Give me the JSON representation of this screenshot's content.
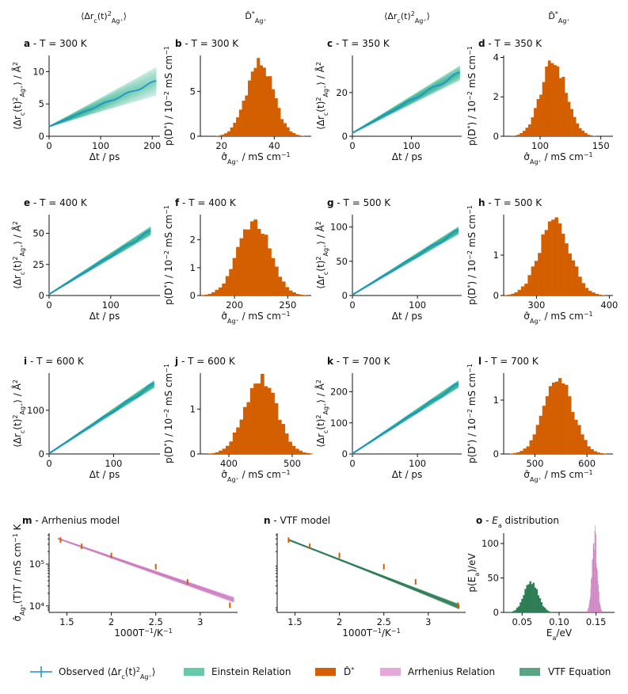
{
  "colors": {
    "observed": "#1f8fd0",
    "einstein": "#27b08a",
    "einstein_legend": "#66c9a9",
    "hist": "#d35f00",
    "arrhenius": "#cf7ac2",
    "arrhenius_legend": "#e6a8db",
    "vtf": "#2e7d57",
    "vtf_legend": "#5aa383"
  },
  "chart_data": {
    "column_headers": [
      "⟨Δr_c(t)²_Ag⁺⟩",
      "D̂*_Ag⁺",
      "⟨Δr_c(t)²_Ag⁺⟩",
      "D̂*_Ag⁺"
    ],
    "msd_panels": [
      {
        "id": "msd-a",
        "letter": "a",
        "title": " - T = 300 K",
        "type": "line",
        "xlabel": "Δt / ps",
        "ylabel": "⟨Δr_c(t)²_Ag⁺⟩ / Å²",
        "xlim": [
          0,
          215
        ],
        "ylim": [
          0,
          12.5
        ],
        "xticks": [
          0,
          100,
          200
        ],
        "yticks": [
          0,
          5,
          10
        ],
        "x_end": 208,
        "y_start": 1.5,
        "y_end": 8.5,
        "spread": 0.45
      },
      {
        "id": "msd-c",
        "letter": "c",
        "title": " - T = 350 K",
        "type": "line",
        "xlabel": "Δt / ps",
        "ylabel": "⟨Δr_c(t)²_Ag⁺⟩ / Å²",
        "xlim": [
          0,
          185
        ],
        "ylim": [
          0,
          37
        ],
        "xticks": [
          0,
          100
        ],
        "yticks": [
          0,
          20
        ],
        "x_end": 182,
        "y_start": 1.5,
        "y_end": 29,
        "spread": 0.2
      },
      {
        "id": "msd-e",
        "letter": "e",
        "title": " - T = 400 K",
        "type": "line",
        "xlabel": "Δt / ps",
        "ylabel": "⟨Δr_c(t)²_Ag⁺⟩ / Å²",
        "xlim": [
          0,
          180
        ],
        "ylim": [
          0,
          65
        ],
        "xticks": [
          0,
          100
        ],
        "yticks": [
          0,
          25,
          50
        ],
        "x_end": 165,
        "y_start": 1,
        "y_end": 52,
        "spread": 0.12
      },
      {
        "id": "msd-g",
        "letter": "g",
        "title": " - T = 500 K",
        "type": "line",
        "xlabel": "Δt / ps",
        "ylabel": "⟨Δr_c(t)²_Ag⁺⟩ / Å²",
        "xlim": [
          0,
          168
        ],
        "ylim": [
          0,
          118
        ],
        "xticks": [
          0,
          100
        ],
        "yticks": [
          0,
          50,
          100
        ],
        "x_end": 163,
        "y_start": 1,
        "y_end": 95,
        "spread": 0.1
      },
      {
        "id": "msd-i",
        "letter": "i",
        "title": " - T = 600 K",
        "type": "line",
        "xlabel": "Δt / ps",
        "ylabel": "⟨Δr_c(t)²_Ag⁺⟩ / Å²",
        "xlim": [
          0,
          172
        ],
        "ylim": [
          0,
          185
        ],
        "xticks": [
          0,
          100
        ],
        "yticks": [
          0,
          100
        ],
        "x_end": 163,
        "y_start": 1,
        "y_end": 160,
        "spread": 0.09
      },
      {
        "id": "msd-k",
        "letter": "k",
        "title": " - T = 700 K",
        "type": "line",
        "xlabel": "Δt / ps",
        "ylabel": "⟨Δr_c(t)²_Ag⁺⟩ / Å²",
        "xlim": [
          0,
          168
        ],
        "ylim": [
          0,
          260
        ],
        "xticks": [
          0,
          100
        ],
        "yticks": [
          0,
          100,
          200
        ],
        "x_end": 163,
        "y_start": 1,
        "y_end": 225,
        "spread": 0.09
      }
    ],
    "hist_panels": [
      {
        "id": "hist-b",
        "letter": "b",
        "title": " - T = 300 K",
        "type": "bar",
        "xlabel": "σ̂_Ag⁺ / mS cm⁻¹",
        "ylabel": "p(D*) / 10⁻² mS cm⁻¹",
        "xlim": [
          12,
          54
        ],
        "ylim": [
          0,
          9
        ],
        "xticks": [
          20,
          40
        ],
        "yticks": [
          0,
          5
        ],
        "mean": 34.5,
        "sd": 5.1,
        "peak": 8.2,
        "bins": 30
      },
      {
        "id": "hist-d",
        "letter": "d",
        "title": " - T = 350 K",
        "type": "bar",
        "xlabel": "σ̂_Ag⁺ / mS cm⁻¹",
        "ylabel": "p(D*) / 10⁻² mS cm⁻¹",
        "xlim": [
          70,
          160
        ],
        "ylim": [
          0,
          4.1
        ],
        "xticks": [
          100,
          150
        ],
        "yticks": [
          0,
          2,
          4
        ],
        "mean": 111,
        "sd": 10.5,
        "peak": 3.75,
        "bins": 30
      },
      {
        "id": "hist-f",
        "letter": "f",
        "title": " - T = 400 K",
        "type": "bar",
        "xlabel": "σ̂_Ag⁺ / mS cm⁻¹",
        "ylabel": "p(D*) / 10⁻² mS cm⁻¹",
        "xlim": [
          168,
          272
        ],
        "ylim": [
          0,
          2.9
        ],
        "xticks": [
          200,
          250
        ],
        "yticks": [
          0,
          1,
          2
        ],
        "mean": 218,
        "sd": 15,
        "peak": 2.7,
        "bins": 30
      },
      {
        "id": "hist-h",
        "letter": "h",
        "title": " - T = 500 K",
        "type": "bar",
        "xlabel": "σ̂_Ag⁺ / mS cm⁻¹",
        "ylabel": "p(D*) / 10⁻² mS cm⁻¹",
        "xlim": [
          255,
          405
        ],
        "ylim": [
          0,
          2.0
        ],
        "xticks": [
          300,
          400
        ],
        "yticks": [
          0,
          1
        ],
        "mean": 325,
        "sd": 21,
        "peak": 1.85,
        "bins": 30
      },
      {
        "id": "hist-j",
        "letter": "j",
        "title": " - T = 600 K",
        "type": "bar",
        "xlabel": "σ̂_Ag⁺ / mS cm⁻¹",
        "ylabel": "p(D*) / 10⁻² mS cm⁻¹",
        "xlim": [
          355,
          530
        ],
        "ylim": [
          0,
          1.8
        ],
        "xticks": [
          400,
          500
        ],
        "yticks": [
          0,
          1
        ],
        "mean": 450,
        "sd": 25,
        "peak": 1.7,
        "bins": 30
      },
      {
        "id": "hist-l",
        "letter": "l",
        "title": " - T = 700 K",
        "type": "bar",
        "xlabel": "σ̂_Ag⁺ / mS cm⁻¹",
        "ylabel": "p(D*) / 10⁻² mS cm⁻¹",
        "xlim": [
          440,
          650
        ],
        "ylim": [
          0,
          1.5
        ],
        "xticks": [
          500,
          600
        ],
        "yticks": [
          0,
          1
        ],
        "mean": 545,
        "sd": 28,
        "peak": 1.38,
        "bins": 30
      }
    ],
    "arrhenius": {
      "id": "panel-m",
      "letter": "m",
      "title": " - Arrhenius model",
      "type": "line",
      "xlabel": "1000T⁻¹/K⁻¹",
      "ylabel": "σ̂_Ag⁺(T)T / mS cm⁻¹ K",
      "yscale": "log",
      "xlim": [
        1.3,
        3.42
      ],
      "ylim": [
        7000,
        550000
      ],
      "xticks": [
        1.5,
        2.0,
        2.5,
        3.0
      ],
      "yticks": [
        10000,
        100000
      ],
      "ytick_labels": [
        "10⁴",
        "10⁵"
      ],
      "observed_x": [
        1.4286,
        1.6667,
        2.0,
        2.5,
        2.8571,
        3.3333
      ],
      "observed_y": [
        380000,
        270000,
        163000,
        88000,
        38000,
        10500
      ],
      "fit_x": [
        1.4,
        3.38
      ],
      "fit_y": [
        410000,
        14000
      ]
    },
    "vtf": {
      "id": "panel-n",
      "letter": "n",
      "title": " - VTF model",
      "type": "line",
      "xlabel": "1000T⁻¹/K⁻¹",
      "yscale": "log",
      "xlim": [
        1.3,
        3.42
      ],
      "ylim": [
        7000,
        550000
      ],
      "xticks": [
        1.5,
        2.0,
        2.5,
        3.0
      ],
      "observed_x": [
        1.4286,
        1.6667,
        2.0,
        2.5,
        2.8571,
        3.3333
      ],
      "observed_y": [
        380000,
        270000,
        163000,
        88000,
        38000,
        10500
      ]
    },
    "ea": {
      "id": "panel-o",
      "letter": "o",
      "title": " - E_a distribution",
      "type": "bar",
      "xlabel": "E_a/eV",
      "ylabel": "p(E_a)/eV",
      "xlim": [
        0.025,
        0.175
      ],
      "ylim": [
        0,
        115
      ],
      "xticks": [
        0.05,
        0.1,
        0.15
      ],
      "xtick_labels": [
        "0.05",
        "0.10",
        "0.15"
      ],
      "yticks": [
        0,
        50,
        100
      ],
      "vtf_mean": 0.062,
      "vtf_sd": 0.0095,
      "vtf_peak": 43,
      "arr_mean": 0.148,
      "arr_sd": 0.0035,
      "arr_peak": 112
    },
    "legend": [
      {
        "key": "observed",
        "label": "Observed ⟨Δr_c(t)²_Ag⁺⟩"
      },
      {
        "key": "einstein",
        "label": "Einstein Relation"
      },
      {
        "key": "hist",
        "label": "D̂*"
      },
      {
        "key": "arrhenius",
        "label": "Arrhenius Relation"
      },
      {
        "key": "vtf",
        "label": "VTF Equation"
      }
    ]
  }
}
